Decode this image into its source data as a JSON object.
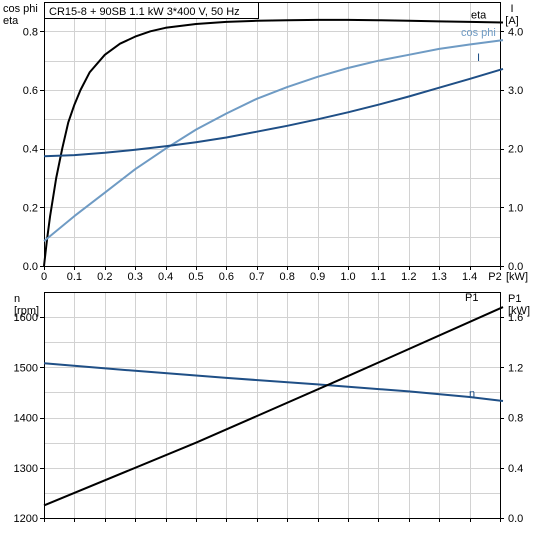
{
  "colors": {
    "eta": "#000000",
    "cosphi": "#6f9bc4",
    "current": "#1f4f86",
    "speed": "#1f4f86",
    "p1": "#000000",
    "grid": "#d2d2d2"
  },
  "chart_data": [
    {
      "type": "line",
      "title": "CR15-8 + 90SB   1.1 kW   3*400 V, 50 Hz",
      "left_axis_label": [
        "cos phi",
        "eta"
      ],
      "right_axis_label": [
        "I",
        "[A]"
      ],
      "xlabel": "P2 [kW]",
      "x_ticks": [
        "0",
        "0.1",
        "0.2",
        "0.3",
        "0.4",
        "0.5",
        "0.6",
        "0.7",
        "0.8",
        "0.9",
        "1.0",
        "1.1",
        "1.2",
        "1.3",
        "1.4",
        "P2",
        "[kW]"
      ],
      "xlim": [
        0,
        1.5
      ],
      "ylim_left": [
        0,
        0.9
      ],
      "y_ticks_left": [
        "0.0",
        "0.2",
        "0.4",
        "0.6",
        "0.8"
      ],
      "ylim_right": [
        0,
        4.5
      ],
      "y_ticks_right": [
        "0.0",
        "1.0",
        "2.0",
        "3.0",
        "4.0"
      ],
      "grid": true,
      "series": [
        {
          "name": "eta",
          "axis": "left",
          "x": [
            0,
            0.01,
            0.02,
            0.04,
            0.06,
            0.08,
            0.1,
            0.12,
            0.15,
            0.2,
            0.25,
            0.3,
            0.35,
            0.4,
            0.5,
            0.6,
            0.7,
            0.8,
            0.9,
            1.0,
            1.1,
            1.2,
            1.3,
            1.4,
            1.51
          ],
          "y": [
            0,
            0.09,
            0.17,
            0.3,
            0.4,
            0.49,
            0.55,
            0.6,
            0.66,
            0.72,
            0.758,
            0.782,
            0.8,
            0.812,
            0.825,
            0.832,
            0.836,
            0.838,
            0.839,
            0.839,
            0.838,
            0.836,
            0.834,
            0.832,
            0.83
          ]
        },
        {
          "name": "cos phi",
          "axis": "left",
          "x": [
            0,
            0.1,
            0.2,
            0.3,
            0.4,
            0.5,
            0.6,
            0.7,
            0.8,
            0.9,
            1.0,
            1.1,
            1.2,
            1.3,
            1.4,
            1.51
          ],
          "y": [
            0.085,
            0.17,
            0.25,
            0.33,
            0.4,
            0.465,
            0.52,
            0.57,
            0.61,
            0.645,
            0.675,
            0.7,
            0.72,
            0.74,
            0.755,
            0.77
          ]
        },
        {
          "name": "I",
          "axis": "right",
          "x": [
            0,
            0.1,
            0.2,
            0.3,
            0.4,
            0.5,
            0.6,
            0.7,
            0.8,
            0.9,
            1.0,
            1.1,
            1.2,
            1.3,
            1.4,
            1.51
          ],
          "y": [
            1.87,
            1.89,
            1.93,
            1.98,
            2.04,
            2.11,
            2.19,
            2.29,
            2.39,
            2.5,
            2.62,
            2.75,
            2.89,
            3.04,
            3.19,
            3.36
          ]
        }
      ]
    },
    {
      "type": "line",
      "left_axis_label": [
        "n",
        "[rpm]"
      ],
      "right_axis_label": [
        "P1",
        "[kW]"
      ],
      "xlim": [
        0,
        1.5
      ],
      "ylim_left": [
        1200,
        1650
      ],
      "y_ticks_left": [
        "1200",
        "1300",
        "1400",
        "1500",
        "1600"
      ],
      "ylim_right": [
        0,
        1.8
      ],
      "y_ticks_right": [
        "0.0",
        "0.4",
        "0.8",
        "1.2",
        "1.6"
      ],
      "grid": true,
      "series": [
        {
          "name": "n",
          "axis": "left",
          "x": [
            0,
            0.3,
            0.6,
            0.9,
            1.2,
            1.4,
            1.51
          ],
          "y": [
            1508,
            1493,
            1479,
            1466,
            1452,
            1441,
            1433
          ]
        },
        {
          "name": "P1",
          "axis": "right",
          "x": [
            0,
            0.5,
            1.0,
            1.51
          ],
          "y": [
            0.1,
            0.6,
            1.13,
            1.68
          ]
        }
      ]
    }
  ]
}
